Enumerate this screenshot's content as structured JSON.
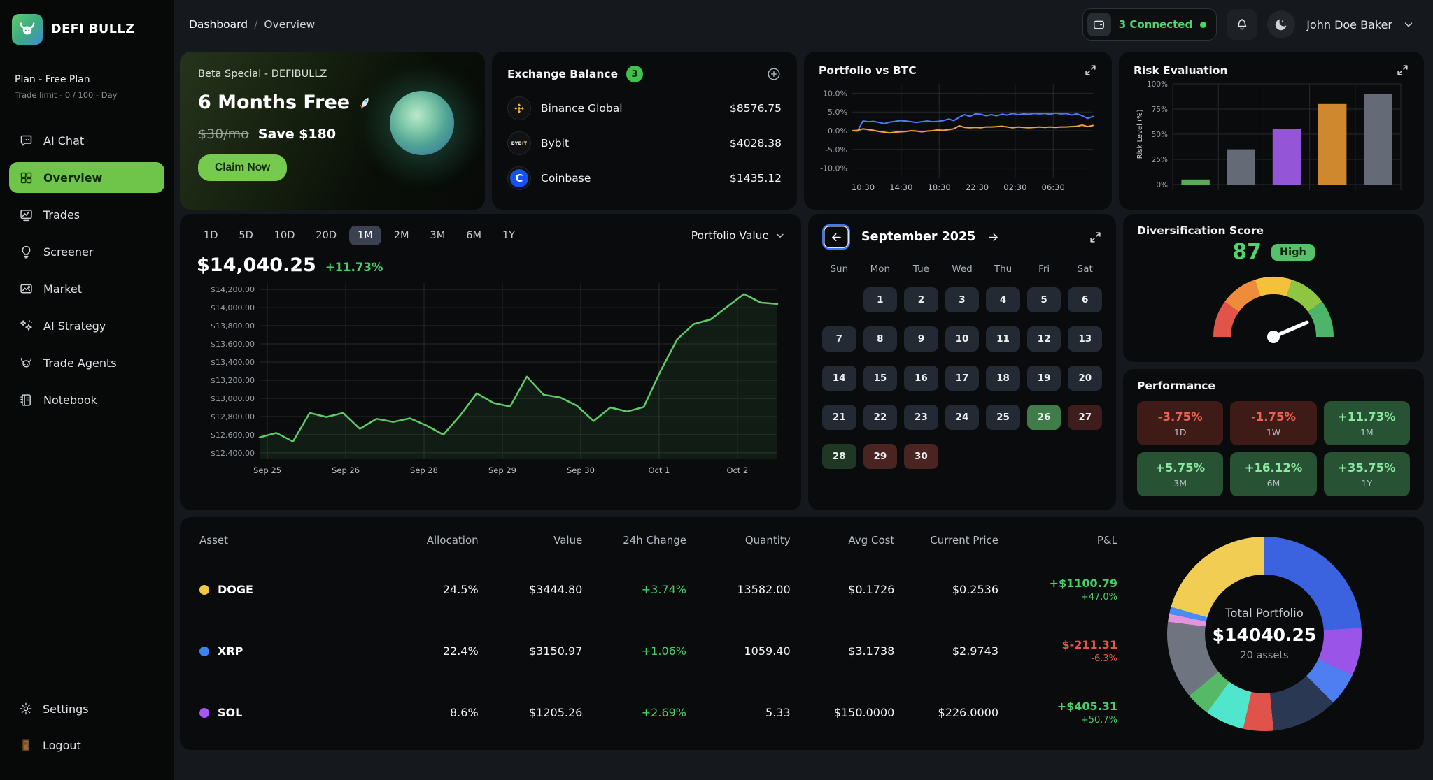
{
  "sidebar": {
    "logo_text": "DEFI BULLZ",
    "plan_title": "Plan - Free Plan",
    "plan_subtitle": "Trade limit - 0 / 100 - Day",
    "items": [
      {
        "label": "AI Chat",
        "icon": "chat",
        "slug": "ai-chat",
        "active": false
      },
      {
        "label": "Overview",
        "icon": "grid",
        "slug": "overview",
        "active": true
      },
      {
        "label": "Trades",
        "icon": "trades",
        "slug": "trades",
        "active": false
      },
      {
        "label": "Screener",
        "icon": "screener",
        "slug": "screener",
        "active": false
      },
      {
        "label": "Market",
        "icon": "market",
        "slug": "market",
        "active": false
      },
      {
        "label": "AI Strategy",
        "icon": "strategy",
        "slug": "ai-strategy",
        "active": false
      },
      {
        "label": "Trade Agents",
        "icon": "agents",
        "slug": "trade-agents",
        "active": false
      },
      {
        "label": "Notebook",
        "icon": "notebook",
        "slug": "notebook",
        "active": false
      }
    ],
    "footer_items": [
      {
        "label": "Settings",
        "icon": "gear",
        "slug": "settings"
      },
      {
        "label": "Logout",
        "icon": "door",
        "slug": "logout"
      }
    ]
  },
  "header": {
    "breadcrumb_a": "Dashboard",
    "breadcrumb_sep": "/",
    "breadcrumb_b": "Overview",
    "connected_label": "3 Connected",
    "user_name": "John Doe Baker"
  },
  "promo": {
    "eyebrow": "Beta Special - DEFIBULLZ",
    "headline": "6 Months Free",
    "old_price": "$30/mo",
    "save_text": "Save $180",
    "cta": "Claim Now"
  },
  "exchange": {
    "title": "Exchange Balance",
    "count": "3",
    "rows": [
      {
        "name": "Binance Global",
        "value": "$8576.75",
        "icon": "binance"
      },
      {
        "name": "Bybit",
        "value": "$4028.38",
        "icon": "bybit"
      },
      {
        "name": "Coinbase",
        "value": "$1435.12",
        "icon": "coinbase"
      }
    ]
  },
  "btc_card": {
    "title": "Portfolio vs BTC"
  },
  "risk_card": {
    "title": "Risk Evaluation"
  },
  "portfolio_card": {
    "timeframes": [
      "1D",
      "5D",
      "10D",
      "20D",
      "1M",
      "2M",
      "3M",
      "6M",
      "1Y"
    ],
    "selected_timeframe": "1M",
    "value": "$14,040.25",
    "change": "+11.73%",
    "dropdown": "Portfolio Value"
  },
  "calendar": {
    "title": "September 2025",
    "day_headers": [
      "Sun",
      "Mon",
      "Tue",
      "Wed",
      "Thu",
      "Fri",
      "Sat"
    ],
    "cells": [
      {
        "t": "",
        "s": "e"
      },
      {
        "t": "1",
        "s": "n"
      },
      {
        "t": "2",
        "s": "n"
      },
      {
        "t": "3",
        "s": "n"
      },
      {
        "t": "4",
        "s": "n"
      },
      {
        "t": "5",
        "s": "n"
      },
      {
        "t": "6",
        "s": "n"
      },
      {
        "t": "7",
        "s": "n"
      },
      {
        "t": "8",
        "s": "n"
      },
      {
        "t": "9",
        "s": "n"
      },
      {
        "t": "10",
        "s": "n"
      },
      {
        "t": "11",
        "s": "n"
      },
      {
        "t": "12",
        "s": "n"
      },
      {
        "t": "13",
        "s": "n"
      },
      {
        "t": "14",
        "s": "n"
      },
      {
        "t": "15",
        "s": "n"
      },
      {
        "t": "16",
        "s": "n"
      },
      {
        "t": "17",
        "s": "n"
      },
      {
        "t": "18",
        "s": "n"
      },
      {
        "t": "19",
        "s": "n"
      },
      {
        "t": "20",
        "s": "n"
      },
      {
        "t": "21",
        "s": "n"
      },
      {
        "t": "22",
        "s": "n"
      },
      {
        "t": "23",
        "s": "n"
      },
      {
        "t": "24",
        "s": "n"
      },
      {
        "t": "25",
        "s": "n"
      },
      {
        "t": "26",
        "s": "g"
      },
      {
        "t": "27",
        "s": "r"
      },
      {
        "t": "28",
        "s": "dg"
      },
      {
        "t": "29",
        "s": "r2"
      },
      {
        "t": "30",
        "s": "r2"
      },
      {
        "t": "",
        "s": "e"
      },
      {
        "t": "",
        "s": "e"
      },
      {
        "t": "",
        "s": "e"
      },
      {
        "t": "",
        "s": "e"
      }
    ]
  },
  "diversification": {
    "title": "Diversification Score",
    "score": "87",
    "badge": "High"
  },
  "performance": {
    "title": "Performance",
    "tiles": [
      {
        "value": "-3.75%",
        "label": "1D",
        "type": "neg"
      },
      {
        "value": "-1.75%",
        "label": "1W",
        "type": "neg"
      },
      {
        "value": "+11.73%",
        "label": "1M",
        "type": "pos"
      },
      {
        "value": "+5.75%",
        "label": "3M",
        "type": "pos"
      },
      {
        "value": "+16.12%",
        "label": "6M",
        "type": "pos"
      },
      {
        "value": "+35.75%",
        "label": "1Y",
        "type": "pos"
      }
    ]
  },
  "table": {
    "headers": [
      "Asset",
      "Allocation",
      "Value",
      "24h Change",
      "Quantity",
      "Avg Cost",
      "Current Price",
      "P&L"
    ],
    "rows": [
      {
        "asset": "DOGE",
        "dot": "#f2c744",
        "allocation": "24.5%",
        "value": "$3444.80",
        "change": "+3.74%",
        "change_positive": true,
        "quantity": "13582.00",
        "avg_cost": "$0.1726",
        "current_price": "$0.2536",
        "pl": "+$1100.79",
        "pl_pct": "+47.0%",
        "pl_positive": true
      },
      {
        "asset": "XRP",
        "dot": "#3b82f6",
        "allocation": "22.4%",
        "value": "$3150.97",
        "change": "+1.06%",
        "change_positive": true,
        "quantity": "1059.40",
        "avg_cost": "$3.1738",
        "current_price": "$2.9743",
        "pl": "$-211.31",
        "pl_pct": "-6.3%",
        "pl_positive": false
      },
      {
        "asset": "SOL",
        "dot": "#a855f7",
        "allocation": "8.6%",
        "value": "$1205.26",
        "change": "+2.69%",
        "change_positive": true,
        "quantity": "5.33",
        "avg_cost": "$150.0000",
        "current_price": "$226.0000",
        "pl": "+$405.31",
        "pl_pct": "+50.7%",
        "pl_positive": true
      }
    ]
  },
  "donut": {
    "center_title": "Total Portfolio",
    "center_value": "$14040.25",
    "center_sub": "20 assets"
  },
  "chart_data": {
    "portfolio_value": {
      "type": "area",
      "title": "Portfolio Value",
      "color": "#5ecb66",
      "ylim": [
        12330,
        14270
      ],
      "yticks": [
        {
          "v": 14200,
          "t": "$14,200.00"
        },
        {
          "v": 14000,
          "t": "$14,000.00"
        },
        {
          "v": 13800,
          "t": "$13,800.00"
        },
        {
          "v": 13600,
          "t": "$13,600.00"
        },
        {
          "v": 13400,
          "t": "$13,400.00"
        },
        {
          "v": 13200,
          "t": "$13,200.00"
        },
        {
          "v": 13000,
          "t": "$13,000.00"
        },
        {
          "v": 12800,
          "t": "$12,800.00"
        },
        {
          "v": 12600,
          "t": "$12,600.00"
        },
        {
          "v": 12400,
          "t": "$12,400.00"
        }
      ],
      "xticks": [
        "Sep 25",
        "Sep 26",
        "Sep 28",
        "Sep 29",
        "Sep 30",
        "Oct 1",
        "Oct 2"
      ],
      "values": [
        12570,
        12620,
        12525,
        12840,
        12795,
        12840,
        12665,
        12775,
        12740,
        12780,
        12700,
        12600,
        12810,
        13055,
        12950,
        12910,
        13240,
        13040,
        13010,
        12920,
        12750,
        12900,
        12855,
        12905,
        13300,
        13650,
        13820,
        13870,
        14010,
        14150,
        14055,
        14040
      ]
    },
    "portfolio_vs_btc": {
      "type": "line",
      "ylim": [
        -12.5,
        12.5
      ],
      "yticks": [
        {
          "v": 10,
          "t": "10.0%"
        },
        {
          "v": 5,
          "t": "5.0%"
        },
        {
          "v": 0,
          "t": "0.0%"
        },
        {
          "v": -5,
          "t": "-5.0%"
        },
        {
          "v": -10,
          "t": "-10.0%"
        }
      ],
      "xticks": [
        "10:30",
        "14:30",
        "18:30",
        "22:30",
        "02:30",
        "06:30"
      ],
      "series": [
        {
          "name": "portfolio",
          "color": "#4d7ef7",
          "values": [
            0,
            -0.1,
            2.6,
            2.4,
            2.5,
            2.2,
            1.9,
            2.3,
            2.5,
            2.7,
            2.6,
            2.4,
            2.2,
            2.4,
            2.6,
            2.4,
            2.5,
            2.7,
            3.1,
            2.7,
            3.6,
            4.3,
            3.8,
            4.5,
            4.4,
            4.0,
            4.3,
            4.0,
            4.4,
            4.2,
            4.6,
            4.3,
            4.5,
            4.4,
            4.6,
            4.5,
            4.6,
            4.4,
            4.7,
            4.5,
            4.6,
            4.2,
            4.5,
            4.0,
            3.3,
            3.8
          ]
        },
        {
          "name": "btc",
          "color": "#f0a33c",
          "values": [
            0,
            0.1,
            0.5,
            0.3,
            0.1,
            -0.2,
            -0.4,
            -0.6,
            -0.4,
            -0.3,
            -0.2,
            0,
            -0.1,
            -0.3,
            -0.1,
            0,
            0.2,
            0.1,
            0.3,
            0.5,
            1.3,
            0.9,
            0.8,
            0.9,
            0.8,
            1.0,
            1.0,
            1.1,
            1.2,
            1.0,
            0.8,
            1.0,
            0.9,
            0.8,
            0.9,
            1.0,
            0.9,
            1.0,
            0.9,
            1.0,
            1.0,
            1.1,
            1.2,
            1.5,
            1.1,
            1.4
          ]
        }
      ]
    },
    "risk_evaluation": {
      "type": "bar",
      "ylabel": "Risk Level (%)",
      "ylim": [
        0,
        100
      ],
      "yticks": [
        {
          "v": 100,
          "t": "100%"
        },
        {
          "v": 75,
          "t": "75%"
        },
        {
          "v": 50,
          "t": "50%"
        },
        {
          "v": 25,
          "t": "25%"
        },
        {
          "v": 0,
          "t": "0%"
        }
      ],
      "values": [
        5,
        35,
        55,
        80,
        90
      ],
      "colors": [
        "#5aab55",
        "#656b76",
        "#9455d6",
        "#d0882f",
        "#656b76"
      ]
    },
    "diversification_gauge": {
      "type": "gauge",
      "score": 87,
      "segment_colors": [
        "#e25449",
        "#ee8c3c",
        "#f3c13c",
        "#8ec641",
        "#4db56a"
      ]
    },
    "allocation_donut": {
      "type": "donut",
      "segments": [
        {
          "color": "#3b63e0",
          "value": 24
        },
        {
          "color": "#9a55e8",
          "value": 8
        },
        {
          "color": "#4f7df2",
          "value": 5.5
        },
        {
          "color": "#2a3854",
          "value": 11
        },
        {
          "color": "#e0534b",
          "value": 5
        },
        {
          "color": "#4fe6cd",
          "value": 6.5
        },
        {
          "color": "#55b968",
          "value": 4
        },
        {
          "color": "#6e7580",
          "value": 13
        },
        {
          "color": "#e493dc",
          "value": 1.3
        },
        {
          "color": "#4a8df2",
          "value": 1.2
        },
        {
          "color": "#f2cd53",
          "value": 20.5
        }
      ]
    }
  }
}
